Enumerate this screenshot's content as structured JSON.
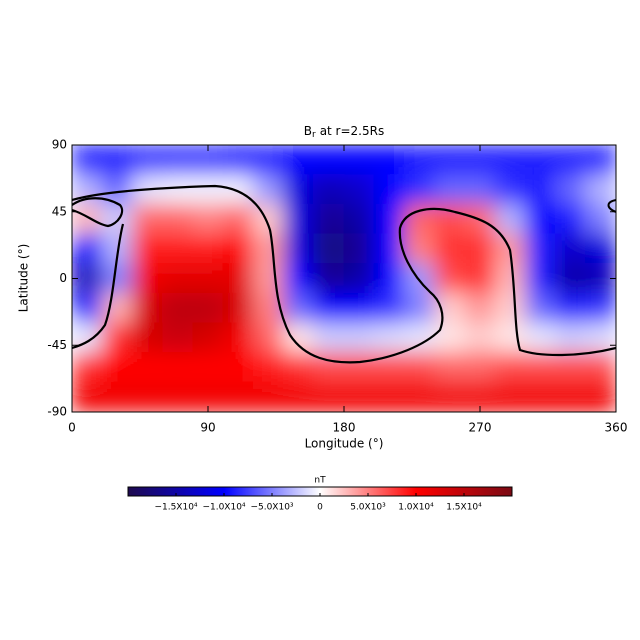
{
  "chart_data": {
    "type": "heatmap",
    "title": {
      "symbol": "B",
      "subscript": "r",
      "text": "at r=2.5Rs"
    },
    "x_label": "Longitude (°)",
    "y_label": "Latitude (°)",
    "xlim": [
      0,
      360
    ],
    "xticks": [
      0,
      90,
      180,
      270,
      360
    ],
    "ylim": [
      -90,
      90
    ],
    "yticks": [
      -90,
      -45,
      0,
      45,
      90
    ],
    "x": [
      10,
      30,
      50,
      70,
      90,
      110,
      130,
      150,
      170,
      190,
      210,
      230,
      250,
      270,
      290,
      310,
      330,
      350
    ],
    "y": [
      80,
      60,
      40,
      20,
      0,
      -20,
      -40,
      -60,
      -80
    ],
    "z": [
      [
        -9000,
        -9000,
        -8000,
        -8000,
        -8000,
        -9000,
        -9000,
        -10000,
        -10000,
        -10000,
        -10000,
        -9000,
        -9000,
        -9000,
        -9000,
        -9000,
        -9000,
        -9000
      ],
      [
        -3000,
        -6000,
        -1000,
        -500,
        -500,
        -500,
        -4000,
        -12000,
        -14000,
        -13000,
        -10000,
        -8000,
        -6000,
        -6000,
        -8000,
        -9000,
        -6000,
        -3000
      ],
      [
        3000,
        -2000,
        6000,
        6000,
        5000,
        6000,
        2000,
        -12000,
        -16000,
        -15000,
        -10000,
        6000,
        7000,
        6000,
        -3000,
        -10000,
        -9000,
        -5000
      ],
      [
        -10000,
        -3000,
        9000,
        9000,
        9000,
        10000,
        4000,
        -12000,
        -17000,
        -16000,
        -10000,
        5000,
        8000,
        8000,
        4000,
        -9000,
        -13000,
        -12000
      ],
      [
        -14000,
        -5000,
        11000,
        12000,
        12000,
        12000,
        4000,
        -10000,
        -16000,
        -15000,
        -10000,
        -4000,
        7000,
        8000,
        3000,
        -9000,
        -15000,
        -14000
      ],
      [
        -9000,
        3000,
        13000,
        15000,
        15000,
        13000,
        5000,
        -6000,
        -10000,
        -10000,
        -8000,
        -5000,
        2000,
        4000,
        2000,
        -6000,
        -9000,
        -8000
      ],
      [
        -1000,
        8000,
        13000,
        14000,
        13000,
        11000,
        6000,
        1000,
        -2000,
        -2000,
        -1500,
        -1000,
        1000,
        2000,
        1000,
        -1000,
        -2000,
        -1500
      ],
      [
        8000,
        10000,
        10000,
        10000,
        10000,
        10000,
        9000,
        8000,
        7000,
        7000,
        7000,
        7000,
        6000,
        6000,
        7000,
        7000,
        7000,
        7000
      ],
      [
        11000,
        11000,
        11000,
        11000,
        11000,
        11000,
        11000,
        11000,
        11000,
        11000,
        11000,
        11000,
        11000,
        11000,
        11000,
        11000,
        11000,
        11000
      ]
    ],
    "colorbar_label": "nT",
    "clim": [
      -20000,
      20000
    ],
    "colorbar_ticks": [
      {
        "value": -15000,
        "label": "−1.5X10⁴"
      },
      {
        "value": -10000,
        "label": "−1.0X10⁴"
      },
      {
        "value": -5000,
        "label": "−5.0X10³"
      },
      0,
      {
        "value": 5000,
        "label": "5.0X10³"
      },
      {
        "value": 10000,
        "label": "1.0X10⁴"
      },
      {
        "value": 15000,
        "label": "1.5X10⁴"
      }
    ],
    "colormap": [
      "#1e0a4e",
      "#0000ff",
      "#ffffff",
      "#ff0000",
      "#7a0a14"
    ]
  }
}
